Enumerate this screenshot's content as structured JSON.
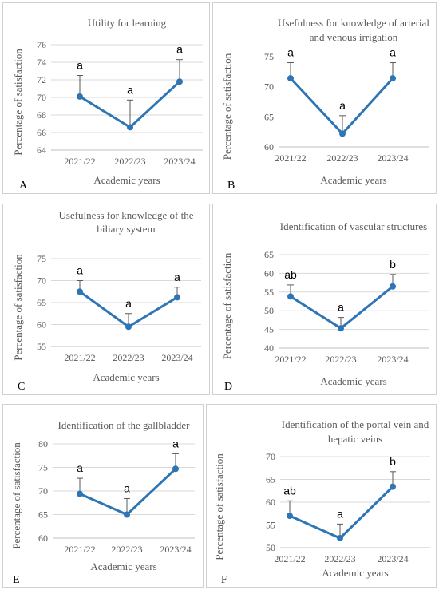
{
  "chart_data": [
    {
      "panel": "A",
      "type": "line",
      "title": [
        "Utility for learning"
      ],
      "categories": [
        "2021/22",
        "2022/23",
        "2023/24"
      ],
      "values": [
        70.1,
        66.6,
        71.8
      ],
      "errors": [
        2.4,
        3.1,
        2.5
      ],
      "letters": [
        "a",
        "a",
        "a"
      ],
      "ylim": [
        64,
        76
      ],
      "yticks": [
        64,
        66,
        68,
        70,
        72,
        74,
        76
      ],
      "xlabel": "Academic years",
      "ylabel": "Percentage of satisfaction",
      "color": "#2E75B6",
      "grid": true
    },
    {
      "panel": "B",
      "type": "line",
      "title": [
        "Usefulness for knowledge of arterial",
        "and venous irrigation"
      ],
      "categories": [
        "2021/22",
        "2022/23",
        "2023/24"
      ],
      "values": [
        71.4,
        62.2,
        71.4
      ],
      "errors": [
        2.6,
        3.0,
        2.6
      ],
      "letters": [
        "a",
        "a",
        "a"
      ],
      "ylim": [
        60,
        75
      ],
      "yticks": [
        60,
        65,
        70,
        75
      ],
      "xlabel": "Academic years",
      "ylabel": "Percentage of satisfaction",
      "color": "#2E75B6",
      "grid": false
    },
    {
      "panel": "C",
      "type": "line",
      "title": [
        "Usefulness for knowledge of the",
        "biliary system"
      ],
      "categories": [
        "2021/22",
        "2022/23",
        "2023/24"
      ],
      "values": [
        67.5,
        59.5,
        66.2
      ],
      "errors": [
        2.5,
        3.0,
        2.3
      ],
      "letters": [
        "a",
        "a",
        "a"
      ],
      "ylim": [
        55,
        75
      ],
      "yticks": [
        55,
        60,
        65,
        70,
        75
      ],
      "xlabel": "Academic years",
      "ylabel": "Percentage of satisfaction",
      "color": "#2E75B6",
      "grid": true
    },
    {
      "panel": "D",
      "type": "line",
      "title": [
        "Identification of vascular structures"
      ],
      "categories": [
        "2021/22",
        "2022/23",
        "2023/24"
      ],
      "values": [
        53.8,
        45.3,
        56.5
      ],
      "errors": [
        3.1,
        2.9,
        3.2
      ],
      "letters": [
        "ab",
        "a",
        "b"
      ],
      "ylim": [
        40,
        65
      ],
      "yticks": [
        40,
        45,
        50,
        55,
        60,
        65
      ],
      "xlabel": "Academic years",
      "ylabel": "Percentage of satisfaction",
      "color": "#2E75B6",
      "grid": true
    },
    {
      "panel": "E",
      "type": "line",
      "title": [
        "Identification of the gallbladder"
      ],
      "categories": [
        "2021/22",
        "2022/23",
        "2023/24"
      ],
      "values": [
        69.4,
        65.0,
        74.7
      ],
      "errors": [
        3.3,
        3.4,
        3.2
      ],
      "letters": [
        "a",
        "a",
        "a"
      ],
      "ylim": [
        60,
        80
      ],
      "yticks": [
        60,
        65,
        70,
        75,
        80
      ],
      "xlabel": "Academic years",
      "ylabel": "Percentage of satisfaction",
      "color": "#2E75B6",
      "grid": true
    },
    {
      "panel": "F",
      "type": "line",
      "title": [
        "Identification of the portal vein and",
        "hepatic veins"
      ],
      "categories": [
        "2021/22",
        "2022/23",
        "2023/24"
      ],
      "values": [
        57.0,
        52.1,
        63.4
      ],
      "errors": [
        3.3,
        3.1,
        3.3
      ],
      "letters": [
        "ab",
        "a",
        "b"
      ],
      "ylim": [
        50,
        70
      ],
      "yticks": [
        50,
        55,
        60,
        65,
        70
      ],
      "xlabel": "Academic years",
      "ylabel": "Percentage of satisfaction",
      "color": "#2E75B6",
      "grid": true
    }
  ]
}
